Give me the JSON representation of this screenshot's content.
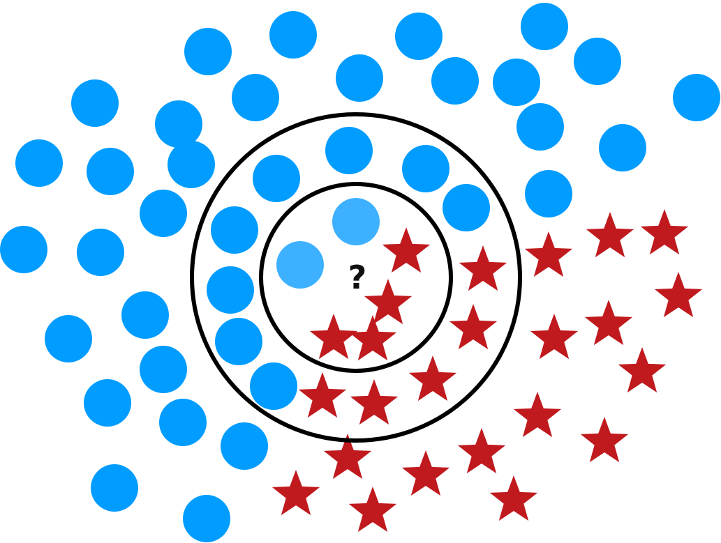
{
  "diagram": {
    "query_label": "?",
    "colors": {
      "circle_class": "#009CFF",
      "circle_class_highlight": "#3DB1FF",
      "star_class": "#C01A1E",
      "ring": "#000000",
      "query_text": "#111111"
    },
    "icons": {
      "circle_class": "blue-circle-point",
      "star_class": "red-star-point",
      "query": "question-mark"
    }
  }
}
